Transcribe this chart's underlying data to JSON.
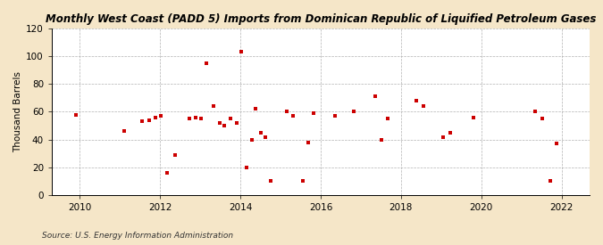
{
  "title": "Monthly West Coast (PADD 5) Imports from Dominican Republic of Liquified Petroleum Gases",
  "ylabel": "Thousand Barrels",
  "source": "Source: U.S. Energy Information Administration",
  "fig_background": "#f5e6c8",
  "plot_background": "#ffffff",
  "marker_color": "#cc0000",
  "xlim": [
    2009.3,
    2022.7
  ],
  "ylim": [
    0,
    120
  ],
  "yticks": [
    0,
    20,
    40,
    60,
    80,
    100,
    120
  ],
  "xticks": [
    2010,
    2012,
    2014,
    2016,
    2018,
    2020,
    2022
  ],
  "data_points": [
    [
      2009.9,
      58
    ],
    [
      2011.1,
      46
    ],
    [
      2011.55,
      53
    ],
    [
      2011.72,
      54
    ],
    [
      2011.88,
      56
    ],
    [
      2012.02,
      57
    ],
    [
      2012.18,
      16
    ],
    [
      2012.38,
      29
    ],
    [
      2012.72,
      55
    ],
    [
      2012.88,
      56
    ],
    [
      2013.02,
      55
    ],
    [
      2013.15,
      95
    ],
    [
      2013.32,
      64
    ],
    [
      2013.48,
      52
    ],
    [
      2013.6,
      50
    ],
    [
      2013.75,
      55
    ],
    [
      2013.9,
      52
    ],
    [
      2014.02,
      103
    ],
    [
      2014.15,
      20
    ],
    [
      2014.28,
      40
    ],
    [
      2014.38,
      62
    ],
    [
      2014.5,
      45
    ],
    [
      2014.62,
      42
    ],
    [
      2014.75,
      10
    ],
    [
      2015.15,
      60
    ],
    [
      2015.3,
      57
    ],
    [
      2015.55,
      10
    ],
    [
      2015.68,
      38
    ],
    [
      2015.82,
      59
    ],
    [
      2016.35,
      57
    ],
    [
      2016.82,
      60
    ],
    [
      2017.35,
      71
    ],
    [
      2017.52,
      40
    ],
    [
      2017.68,
      55
    ],
    [
      2018.38,
      68
    ],
    [
      2018.55,
      64
    ],
    [
      2019.05,
      42
    ],
    [
      2019.22,
      45
    ],
    [
      2019.8,
      56
    ],
    [
      2021.35,
      60
    ],
    [
      2021.52,
      55
    ],
    [
      2021.72,
      10
    ],
    [
      2021.88,
      37
    ]
  ]
}
